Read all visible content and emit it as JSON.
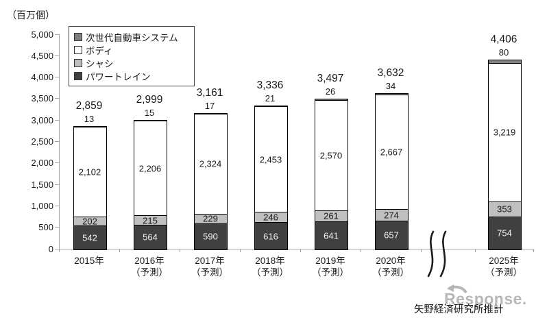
{
  "unit_label": "（百万個）",
  "source": "矢野経済研究所推計",
  "watermark": {
    "text": "Response."
  },
  "legend": {
    "items": [
      {
        "key": "next-gen-system",
        "label": "次世代自動車システム",
        "color": "#808080"
      },
      {
        "key": "body",
        "label": "ボディ",
        "color": "#ffffff"
      },
      {
        "key": "chassis",
        "label": "シャシ",
        "color": "#bfbfbf"
      },
      {
        "key": "powertrain",
        "label": "パワートレイン",
        "color": "#404040"
      }
    ]
  },
  "chart_data": {
    "type": "bar",
    "stacked": true,
    "title": "",
    "ylabel": "（百万個）",
    "ylim": [
      0,
      5000
    ],
    "ytick_step": 500,
    "grid": false,
    "legend_position": "top-left-inside",
    "axis_break_after_category_index": 5,
    "categories": [
      {
        "label": "2015年",
        "note": ""
      },
      {
        "label": "2016年",
        "note": "（予測）"
      },
      {
        "label": "2017年",
        "note": "（予測）"
      },
      {
        "label": "2018年",
        "note": "（予測）"
      },
      {
        "label": "2019年",
        "note": "（予測）"
      },
      {
        "label": "2020年",
        "note": "（予測）"
      },
      {
        "label": "2025年",
        "note": "（予測）"
      }
    ],
    "series": [
      {
        "key": "powertrain",
        "name": "パワートレイン",
        "color": "#404040",
        "text_color": "#f2f2f2",
        "label_inside": true,
        "values": [
          542,
          564,
          590,
          616,
          641,
          657,
          754
        ]
      },
      {
        "key": "chassis",
        "name": "シャシ",
        "color": "#bfbfbf",
        "text_color": "#1a1a1a",
        "label_inside": true,
        "values": [
          202,
          215,
          229,
          246,
          261,
          274,
          353
        ]
      },
      {
        "key": "body",
        "name": "ボディ",
        "color": "#ffffff",
        "text_color": "#1a1a1a",
        "label_inside": true,
        "values": [
          2102,
          2206,
          2324,
          2453,
          2570,
          2667,
          3219
        ]
      },
      {
        "key": "next-gen-system",
        "name": "次世代自動車システム",
        "color": "#808080",
        "text_color": "#1a1a1a",
        "label_inside": false,
        "values": [
          13,
          15,
          17,
          21,
          26,
          34,
          80
        ]
      }
    ],
    "totals": [
      2859,
      2999,
      3161,
      3336,
      3497,
      3632,
      4406
    ]
  }
}
